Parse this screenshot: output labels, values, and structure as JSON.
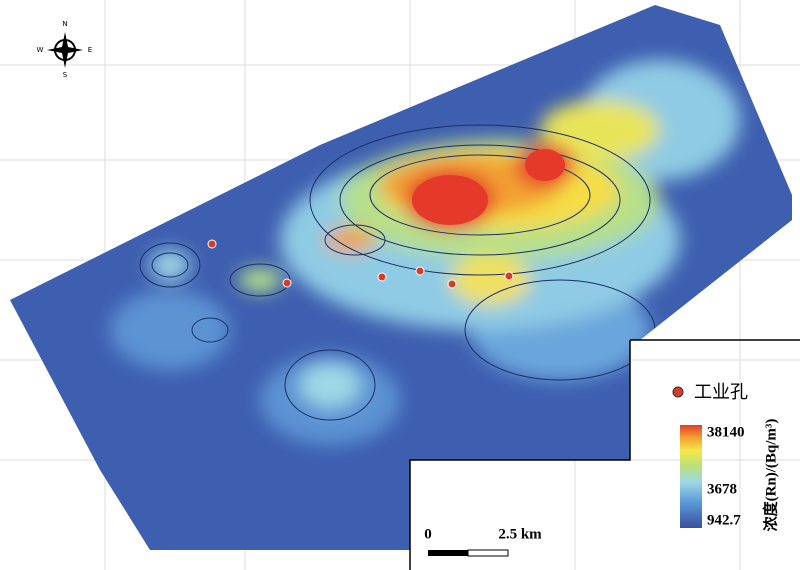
{
  "compass": {
    "north": "N",
    "south": "S",
    "west": "W",
    "east": "E"
  },
  "legend": {
    "borehole": "工业孔"
  },
  "colorbar": {
    "title": "浓度(Rn)/(Bq/m³)",
    "ticks": [
      38140,
      3678,
      942.7
    ]
  },
  "scale_bar": {
    "start": "0",
    "end": "2.5 km"
  }
}
